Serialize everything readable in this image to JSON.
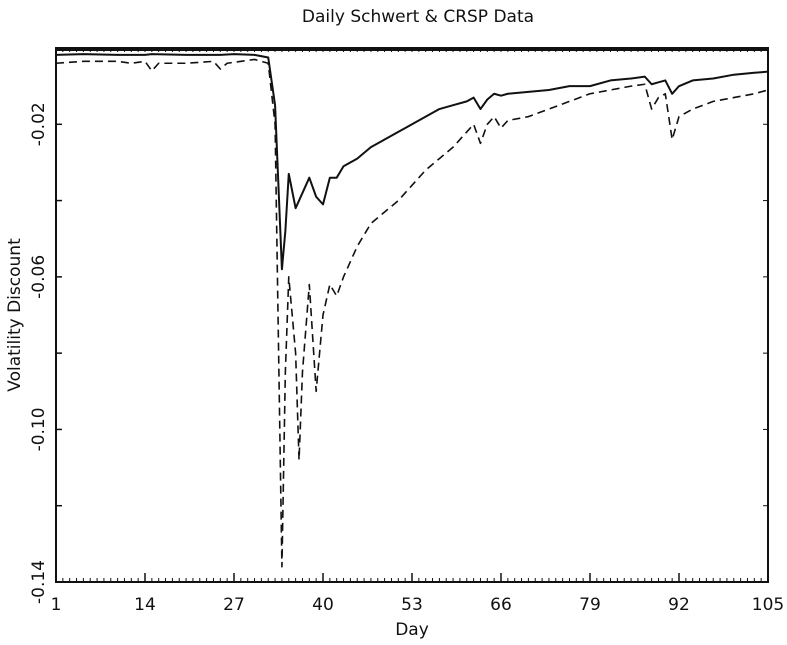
{
  "chart_data": {
    "type": "line",
    "title": "Daily Schwert & CRSP Data",
    "xlabel": "Day",
    "ylabel": "Volatility Discount",
    "xlim": [
      1,
      105
    ],
    "ylim": [
      -0.14,
      0.0
    ],
    "x_ticks": [
      1,
      14,
      27,
      40,
      53,
      66,
      79,
      92,
      105
    ],
    "x_tick_labels": [
      "1",
      "14",
      "27",
      "40",
      "53",
      "66",
      "79",
      "92",
      "105"
    ],
    "y_ticks": [
      -0.14,
      -0.1,
      -0.06,
      -0.02
    ],
    "y_tick_labels": [
      "-0.14",
      "-0.10",
      "-0.06",
      "-0.02"
    ],
    "grid": false,
    "legend": "none",
    "series": [
      {
        "style": "solid",
        "color": "#111111",
        "points": [
          [
            1,
            -0.0018
          ],
          [
            5,
            -0.0016
          ],
          [
            10,
            -0.0018
          ],
          [
            14,
            -0.0018
          ],
          [
            15,
            -0.0016
          ],
          [
            20,
            -0.0018
          ],
          [
            25,
            -0.0018
          ],
          [
            27,
            -0.0016
          ],
          [
            30,
            -0.0018
          ],
          [
            32,
            -0.0025
          ],
          [
            33,
            -0.015
          ],
          [
            34,
            -0.058
          ],
          [
            34.5,
            -0.048
          ],
          [
            35,
            -0.033
          ],
          [
            36,
            -0.042
          ],
          [
            37,
            -0.038
          ],
          [
            38,
            -0.034
          ],
          [
            39,
            -0.039
          ],
          [
            40,
            -0.041
          ],
          [
            41,
            -0.034
          ],
          [
            42,
            -0.034
          ],
          [
            43,
            -0.031
          ],
          [
            45,
            -0.029
          ],
          [
            47,
            -0.026
          ],
          [
            49,
            -0.024
          ],
          [
            51,
            -0.022
          ],
          [
            53,
            -0.02
          ],
          [
            55,
            -0.018
          ],
          [
            57,
            -0.016
          ],
          [
            59,
            -0.015
          ],
          [
            61,
            -0.014
          ],
          [
            62,
            -0.013
          ],
          [
            63,
            -0.016
          ],
          [
            64,
            -0.0135
          ],
          [
            65,
            -0.012
          ],
          [
            66,
            -0.0125
          ],
          [
            67,
            -0.012
          ],
          [
            70,
            -0.0115
          ],
          [
            73,
            -0.011
          ],
          [
            76,
            -0.01
          ],
          [
            79,
            -0.01
          ],
          [
            82,
            -0.0085
          ],
          [
            85,
            -0.008
          ],
          [
            87,
            -0.0075
          ],
          [
            88,
            -0.0095
          ],
          [
            89,
            -0.009
          ],
          [
            90,
            -0.0085
          ],
          [
            91,
            -0.012
          ],
          [
            92,
            -0.01
          ],
          [
            94,
            -0.0085
          ],
          [
            97,
            -0.008
          ],
          [
            100,
            -0.007
          ],
          [
            103,
            -0.0065
          ],
          [
            105,
            -0.0062
          ]
        ]
      },
      {
        "style": "dashed",
        "color": "#111111",
        "points": [
          [
            1,
            -0.004
          ],
          [
            5,
            -0.0035
          ],
          [
            10,
            -0.0035
          ],
          [
            12,
            -0.004
          ],
          [
            14,
            -0.0035
          ],
          [
            15,
            -0.006
          ],
          [
            16,
            -0.004
          ],
          [
            20,
            -0.004
          ],
          [
            24,
            -0.0035
          ],
          [
            25,
            -0.0055
          ],
          [
            26,
            -0.004
          ],
          [
            30,
            -0.003
          ],
          [
            32,
            -0.004
          ],
          [
            33,
            -0.02
          ],
          [
            34,
            -0.136
          ],
          [
            34.5,
            -0.085
          ],
          [
            35,
            -0.06
          ],
          [
            36,
            -0.08
          ],
          [
            36.5,
            -0.108
          ],
          [
            37,
            -0.085
          ],
          [
            38,
            -0.062
          ],
          [
            39,
            -0.09
          ],
          [
            40,
            -0.07
          ],
          [
            41,
            -0.062
          ],
          [
            42,
            -0.065
          ],
          [
            43,
            -0.06
          ],
          [
            45,
            -0.052
          ],
          [
            47,
            -0.046
          ],
          [
            49,
            -0.043
          ],
          [
            51,
            -0.04
          ],
          [
            53,
            -0.036
          ],
          [
            55,
            -0.032
          ],
          [
            57,
            -0.029
          ],
          [
            59,
            -0.026
          ],
          [
            61,
            -0.022
          ],
          [
            62,
            -0.02
          ],
          [
            63,
            -0.025
          ],
          [
            64,
            -0.02
          ],
          [
            65,
            -0.018
          ],
          [
            66,
            -0.021
          ],
          [
            67,
            -0.019
          ],
          [
            70,
            -0.018
          ],
          [
            73,
            -0.016
          ],
          [
            76,
            -0.014
          ],
          [
            79,
            -0.012
          ],
          [
            82,
            -0.011
          ],
          [
            85,
            -0.01
          ],
          [
            87,
            -0.0095
          ],
          [
            88,
            -0.016
          ],
          [
            89,
            -0.013
          ],
          [
            90,
            -0.012
          ],
          [
            91,
            -0.024
          ],
          [
            92,
            -0.018
          ],
          [
            94,
            -0.016
          ],
          [
            97,
            -0.014
          ],
          [
            100,
            -0.013
          ],
          [
            103,
            -0.012
          ],
          [
            105,
            -0.011
          ]
        ]
      }
    ]
  }
}
